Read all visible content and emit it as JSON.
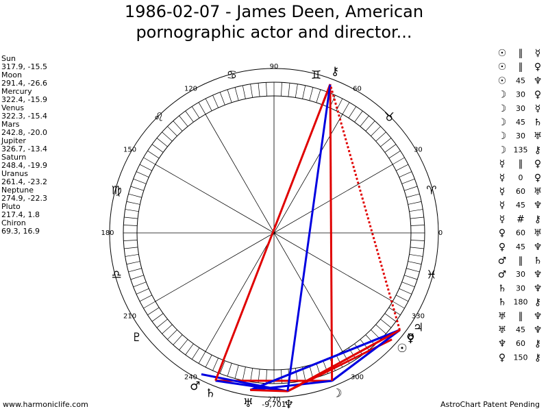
{
  "header": {
    "title": [
      "1986-02-07 - James Deen, American",
      "pornographic actor and director..."
    ]
  },
  "planets": [
    {
      "name": "Sun",
      "glyph": "☉",
      "longitude": 317.9,
      "declination": -15.5,
      "label": "317.9, -15.5"
    },
    {
      "name": "Moon",
      "glyph": "☽",
      "longitude": 291.4,
      "declination": -26.6,
      "label": "291.4, -26.6"
    },
    {
      "name": "Mercury",
      "glyph": "☿",
      "longitude": 322.4,
      "declination": -15.9,
      "label": "322.4, -15.9"
    },
    {
      "name": "Venus",
      "glyph": "♀",
      "longitude": 322.3,
      "declination": -15.4,
      "label": "322.3, -15.4"
    },
    {
      "name": "Mars",
      "glyph": "♂",
      "longitude": 242.8,
      "declination": -20.0,
      "label": "242.8, -20.0"
    },
    {
      "name": "Jupiter",
      "glyph": "♃",
      "longitude": 326.7,
      "declination": -13.4,
      "label": "326.7, -13.4"
    },
    {
      "name": "Saturn",
      "glyph": "♄",
      "longitude": 248.4,
      "declination": -19.9,
      "label": "248.4, -19.9"
    },
    {
      "name": "Uranus",
      "glyph": "♅",
      "longitude": 261.4,
      "declination": -23.2,
      "label": "261.4, -23.2"
    },
    {
      "name": "Neptune",
      "glyph": "♆",
      "longitude": 274.9,
      "declination": -22.3,
      "label": "274.9, -22.3"
    },
    {
      "name": "Pluto",
      "glyph": "♇",
      "longitude": 217.4,
      "declination": 1.8,
      "label": "217.4, 1.8"
    },
    {
      "name": "Chiron",
      "glyph": "⚷",
      "longitude": 69.3,
      "declination": 16.9,
      "label": "69.3, 16.9"
    }
  ],
  "aspects": [
    {
      "p1": "☉",
      "aspect": "∥",
      "p2": "☿"
    },
    {
      "p1": "☉",
      "aspect": "∥",
      "p2": "♀"
    },
    {
      "p1": "☉",
      "aspect": 45,
      "p2": "♆",
      "color": "#e00000"
    },
    {
      "p1": "☽",
      "aspect": 30,
      "p2": "♀",
      "color": "#0000e0"
    },
    {
      "p1": "☽",
      "aspect": 30,
      "p2": "☿",
      "color": "#0000e0"
    },
    {
      "p1": "☽",
      "aspect": 45,
      "p2": "♄",
      "color": "#e00000"
    },
    {
      "p1": "☽",
      "aspect": 30,
      "p2": "♅",
      "color": "#0000e0"
    },
    {
      "p1": "☽",
      "aspect": 135,
      "p2": "⚷",
      "color": "#e00000"
    },
    {
      "p1": "☿",
      "aspect": "∥",
      "p2": "♀"
    },
    {
      "p1": "☿",
      "aspect": 0,
      "p2": "♀",
      "color": "#e00000"
    },
    {
      "p1": "☿",
      "aspect": 60,
      "p2": "♅",
      "color": "#0000e0"
    },
    {
      "p1": "☿",
      "aspect": 45,
      "p2": "♆",
      "color": "#e00000"
    },
    {
      "p1": "☿",
      "aspect": "#",
      "p2": "⚷"
    },
    {
      "p1": "♀",
      "aspect": 60,
      "p2": "♅",
      "color": "#0000e0"
    },
    {
      "p1": "♀",
      "aspect": 45,
      "p2": "♆",
      "color": "#e00000"
    },
    {
      "p1": "♂",
      "aspect": "∥",
      "p2": "♄"
    },
    {
      "p1": "♂",
      "aspect": 30,
      "p2": "♆",
      "color": "#0000e0"
    },
    {
      "p1": "♄",
      "aspect": 30,
      "p2": "♆",
      "color": "#0000e0"
    },
    {
      "p1": "♄",
      "aspect": 180,
      "p2": "⚷",
      "color": "#e00000"
    },
    {
      "p1": "♅",
      "aspect": "∥",
      "p2": "♆"
    },
    {
      "p1": "♅",
      "aspect": 45,
      "p2": "♆",
      "color": "#e00000"
    },
    {
      "p1": "♆",
      "aspect": 60,
      "p2": "⚷",
      "color": "#0000e0"
    },
    {
      "p1": "♀",
      "aspect": 150,
      "p2": "⚷",
      "color": "#e00000",
      "dotted": true
    }
  ],
  "degree_labels": [
    0,
    30,
    60,
    90,
    120,
    150,
    180,
    210,
    240,
    270,
    300,
    330
  ],
  "signs": [
    {
      "glyph": "♈",
      "longitude": 15
    },
    {
      "glyph": "♉",
      "longitude": 45
    },
    {
      "glyph": "♊",
      "longitude": 75
    },
    {
      "glyph": "♋",
      "longitude": 105
    },
    {
      "glyph": "♌",
      "longitude": 135
    },
    {
      "glyph": "♍",
      "longitude": 165
    },
    {
      "glyph": "♎",
      "longitude": 195
    },
    {
      "glyph": "♓",
      "longitude": 345
    }
  ],
  "bottom_value": {
    "value": -9701,
    "label": "-9,701"
  },
  "footer": {
    "left": "www.harmoniclife.com",
    "right": "AstroChart Patent Pending"
  }
}
